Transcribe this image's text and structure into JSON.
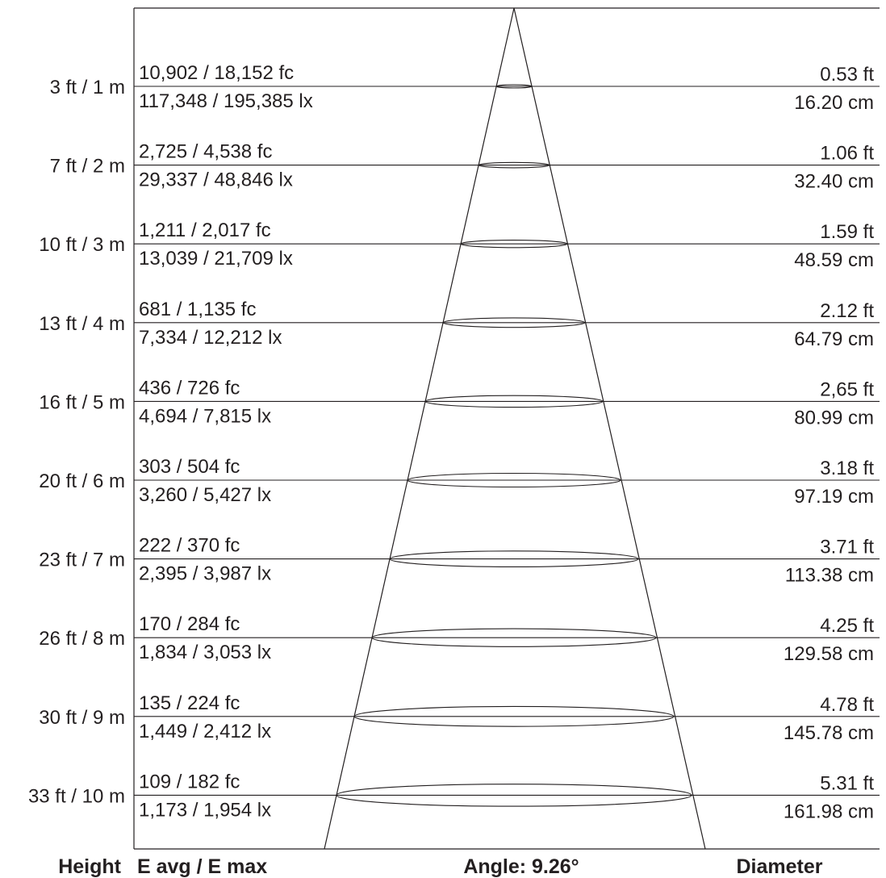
{
  "diagram": {
    "beam_angle": "Angle: 9.26°",
    "footer": {
      "height": "Height",
      "illuminance": "E avg / E max",
      "angle": "Angle: 9.26°",
      "diameter": "Diameter"
    },
    "rows": [
      {
        "height": "3 ft / 1 m",
        "fc": "10,902 / 18,152 fc",
        "lx": "117,348 / 195,385 lx",
        "diameter_ft": "0.53 ft",
        "diameter_cm": "16.20 cm"
      },
      {
        "height": "7 ft / 2 m",
        "fc": "2,725 / 4,538 fc",
        "lx": "29,337 / 48,846 lx",
        "diameter_ft": "1.06 ft",
        "diameter_cm": "32.40 cm"
      },
      {
        "height": "10 ft / 3 m",
        "fc": "1,211 / 2,017 fc",
        "lx": "13,039 / 21,709 lx",
        "diameter_ft": "1.59 ft",
        "diameter_cm": "48.59 cm"
      },
      {
        "height": "13 ft / 4 m",
        "fc": "681 / 1,135 fc",
        "lx": "7,334 / 12,212 lx",
        "diameter_ft": "2.12 ft",
        "diameter_cm": "64.79 cm"
      },
      {
        "height": "16 ft / 5 m",
        "fc": "436 / 726 fc",
        "lx": "4,694 / 7,815 lx",
        "diameter_ft": "2,65 ft",
        "diameter_cm": "80.99 cm"
      },
      {
        "height": "20 ft / 6 m",
        "fc": "303 / 504 fc",
        "lx": "3,260 / 5,427 lx",
        "diameter_ft": "3.18 ft",
        "diameter_cm": "97.19 cm"
      },
      {
        "height": "23 ft / 7 m",
        "fc": "222 / 370 fc",
        "lx": "2,395 / 3,987 lx",
        "diameter_ft": "3.71 ft",
        "diameter_cm": "113.38 cm"
      },
      {
        "height": "26 ft / 8 m",
        "fc": "170 / 284 fc",
        "lx": "1,834 / 3,053 lx",
        "diameter_ft": "4.25 ft",
        "diameter_cm": "129.58 cm"
      },
      {
        "height": "30 ft / 9 m",
        "fc": "135 / 224 fc",
        "lx": "1,449 / 2,412 lx",
        "diameter_ft": "4.78 ft",
        "diameter_cm": "145.78 cm"
      },
      {
        "height": "33 ft / 10 m",
        "fc": "109 / 182 fc",
        "lx": "1,173 / 1,954 lx",
        "diameter_ft": "5.31 ft",
        "diameter_cm": "161.98 cm"
      }
    ]
  }
}
